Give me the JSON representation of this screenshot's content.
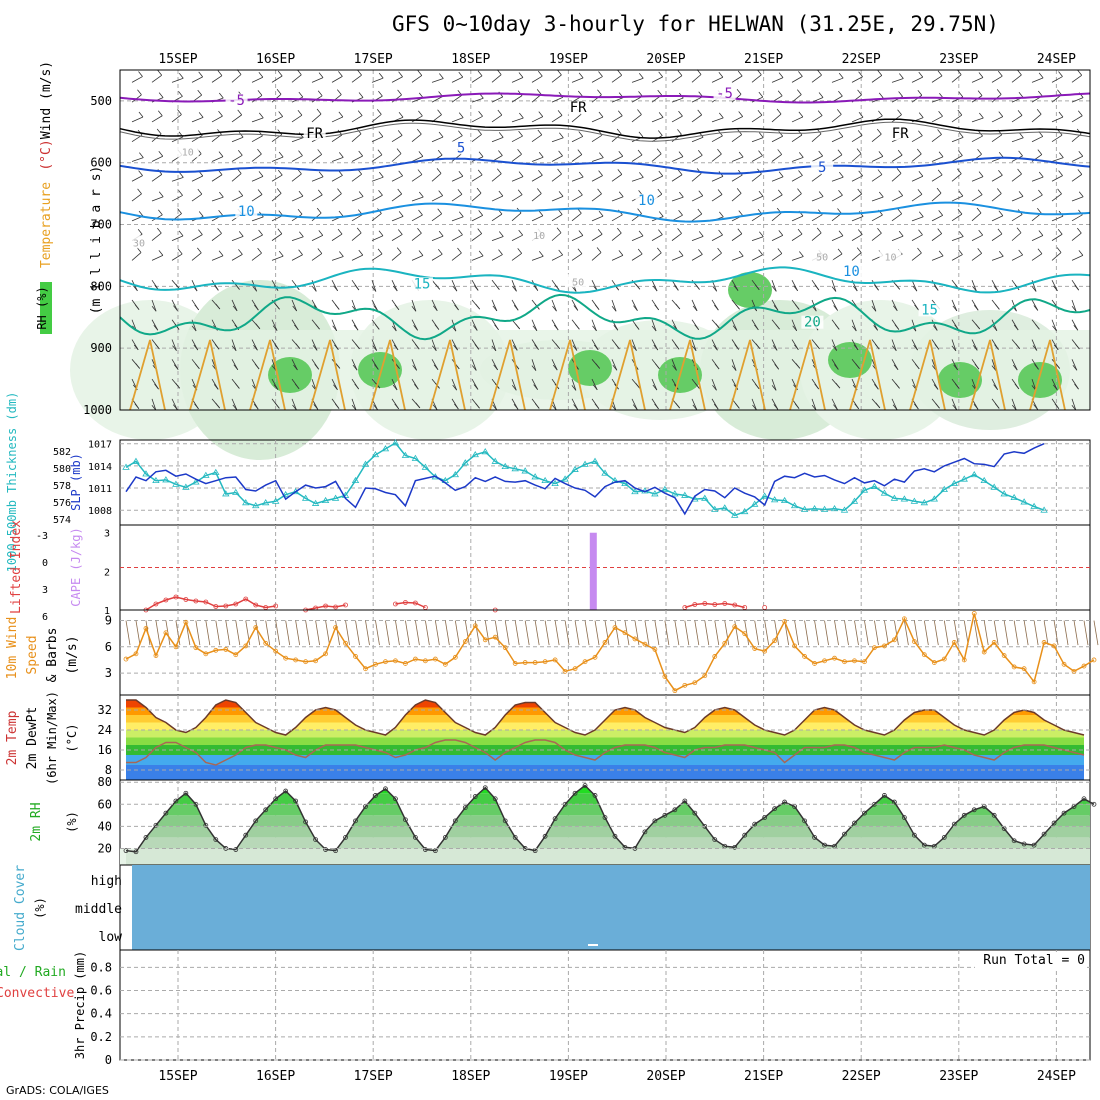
{
  "title": "GFS 0~10day 3-hourly for HELWAN (31.25E, 29.75N)",
  "credit": "GrADS: COLA/IGES",
  "colors": {
    "grid": "#aaaaaa",
    "axis": "#000000",
    "slp": "#1c39c8",
    "thickness": "#24b9c0",
    "lifted_index": "#e04040",
    "cape": "#c68af0",
    "wind10m": "#e8901a",
    "wind_barb": "#8a6a4a",
    "dewpoint_line": "#6b3a2a",
    "rh_fill": "#22cc22",
    "cloud_fill": "#6aaed8",
    "minus5": "#8a1ab8",
    "freezing": "#000000",
    "plus5": "#1a50d0",
    "plus10": "#1a90e0",
    "plus15": "#1ab4c0",
    "plus20": "#10a888"
  },
  "chart_data": [
    {
      "name": "upper-air",
      "type": "heatmap",
      "dates": [
        "15SEP",
        "16SEP",
        "17SEP",
        "18SEP",
        "19SEP",
        "20SEP",
        "21SEP",
        "22SEP",
        "23SEP",
        "24SEP"
      ],
      "yaxis_label_parts": [
        "RH (%)",
        "Temperature",
        "(°C)",
        "Wind (m/s)"
      ],
      "ylabel": "(m i l l i b a r s)",
      "yticks": [
        500,
        600,
        700,
        800,
        900,
        1000
      ],
      "ylim": [
        1000,
        450
      ],
      "contour_labels": [
        {
          "text": "-5",
          "p": 503,
          "day": 0.6,
          "color_key": "minus5"
        },
        {
          "text": "-5",
          "p": 492,
          "day": 5.6,
          "color_key": "minus5"
        },
        {
          "text": "FR",
          "p": 557,
          "day": 1.4,
          "color_key": "freezing"
        },
        {
          "text": "FR",
          "p": 515,
          "day": 4.1,
          "color_key": "freezing"
        },
        {
          "text": "FR",
          "p": 557,
          "day": 7.4,
          "color_key": "freezing"
        },
        {
          "text": "5",
          "p": 580,
          "day": 2.9,
          "color_key": "plus5"
        },
        {
          "text": "5",
          "p": 612,
          "day": 6.6,
          "color_key": "plus5"
        },
        {
          "text": "10",
          "p": 683,
          "day": 0.7,
          "color_key": "plus10"
        },
        {
          "text": "10",
          "p": 665,
          "day": 4.8,
          "color_key": "plus10"
        },
        {
          "text": "10",
          "p": 780,
          "day": 6.9,
          "color_key": "plus10"
        },
        {
          "text": "15",
          "p": 800,
          "day": 2.5,
          "color_key": "plus15"
        },
        {
          "text": "15",
          "p": 842,
          "day": 7.7,
          "color_key": "plus15"
        },
        {
          "text": "20",
          "p": 862,
          "day": 6.5,
          "color_key": "plus20"
        },
        {
          "text": "10",
          "p": 585,
          "day": 0.1,
          "color_key": "grid"
        },
        {
          "text": "10",
          "p": 720,
          "day": 3.7,
          "color_key": "grid"
        },
        {
          "text": "30",
          "p": 732,
          "day": -0.4,
          "color_key": "grid"
        },
        {
          "text": "50",
          "p": 755,
          "day": 6.6,
          "color_key": "grid"
        },
        {
          "text": "50",
          "p": 795,
          "day": 4.1,
          "color_key": "grid"
        },
        {
          "text": "10",
          "p": 755,
          "day": 7.3,
          "color_key": "grid"
        }
      ]
    },
    {
      "name": "slp-thickness",
      "type": "line",
      "ylabel_left": "1000-500mb Thickness (dm)",
      "ylabel_right": "SLP (mb)",
      "yticks_left": [
        574,
        576,
        578,
        580,
        582
      ],
      "yticks_right": [
        1008,
        1011,
        1014,
        1017
      ],
      "ylim_slp": [
        1006,
        1017.5
      ],
      "series": [
        {
          "name": "SLP (mb)",
          "values": [
            1010.5,
            1012.5,
            1012.0,
            1013.2,
            1013.4,
            1012.6,
            1012.9,
            1012.2,
            1011.6,
            1012.0,
            1012.4,
            1012.5,
            1010.8,
            1010.6,
            1011.4,
            1012.0,
            1009.5,
            1010.5,
            1011.4,
            1011.0,
            1011.2,
            1011.9,
            1009.6,
            1008.4,
            1011.0,
            1010.9,
            1010.4,
            1010.1,
            1008.6,
            1012.0,
            1012.3,
            1012.6,
            1011.7,
            1010.7,
            1011.2,
            1012.4,
            1011.9,
            1012.5,
            1011.9,
            1011.8,
            1012.0,
            1011.4,
            1010.9,
            1012.3,
            1011.6,
            1011.0,
            1010.7,
            1009.8,
            1011.2,
            1011.8,
            1012.0,
            1011.0,
            1010.5,
            1011.1,
            1010.3,
            1009.7,
            1007.5,
            1009.9,
            1010.8,
            1010.6,
            1009.7,
            1011.0,
            1010.3,
            1009.8,
            1008.7,
            1011.9,
            1012.6,
            1012.4,
            1013.0,
            1012.5,
            1012.7,
            1012.1,
            1011.6,
            1012.4,
            1011.7,
            1012.0,
            1011.3,
            1012.2,
            1011.8,
            1013.3,
            1013.6,
            1013.2,
            1014.0,
            1014.5,
            1015.0,
            1014.3,
            1014.2,
            1013.9,
            1015.6,
            1015.9,
            1015.7,
            1016.4,
            1017.0
          ]
        },
        {
          "name": "Thickness (dm)",
          "values": [
            1013.8,
            1014.6,
            1012.9,
            1012.0,
            1012.1,
            1011.5,
            1011.1,
            1011.8,
            1012.7,
            1013.1,
            1010.2,
            1010.4,
            1009.0,
            1008.6,
            1009.0,
            1009.2,
            1010.1,
            1010.5,
            1009.6,
            1008.9,
            1009.3,
            1009.6,
            1010.0,
            1012.0,
            1014.2,
            1015.5,
            1016.3,
            1017.1,
            1015.4,
            1015.0,
            1013.8,
            1012.5,
            1012.0,
            1012.8,
            1014.4,
            1015.5,
            1015.9,
            1014.6,
            1013.9,
            1013.6,
            1013.3,
            1012.5,
            1012.0,
            1011.6,
            1012.2,
            1013.5,
            1014.2,
            1014.6,
            1013.0,
            1012.0,
            1011.6,
            1010.5,
            1010.6,
            1010.2,
            1010.8,
            1010.2,
            1010.0,
            1009.5,
            1009.6,
            1008.1,
            1008.3,
            1007.3,
            1007.8,
            1008.8,
            1009.9,
            1009.4,
            1009.3,
            1008.6,
            1008.1,
            1008.2,
            1008.1,
            1008.2,
            1008.0,
            1009.2,
            1010.7,
            1011.2,
            1010.3,
            1009.6,
            1009.5,
            1009.2,
            1009.0,
            1009.5,
            1010.8,
            1011.6,
            1012.2,
            1012.8,
            1012.0,
            1011.1,
            1010.2,
            1009.7,
            1009.1,
            1008.5,
            1008.0
          ]
        }
      ]
    },
    {
      "name": "lifted-cape",
      "type": "line",
      "ylabel_left": "Lifted Index",
      "ylabel_right": "CAPE (J/kg)",
      "yticks_left": [
        "-3",
        "0",
        "3",
        "6"
      ],
      "yticks_right": [
        1,
        2,
        3
      ],
      "ylim_cape": [
        1,
        3.2
      ],
      "cape_bar": {
        "day": 4.25,
        "value": 3.0
      },
      "cape_dashed_level": 2.1,
      "series": [
        {
          "name": "Lifted Index",
          "values": [
            null,
            null,
            6.0,
            4.8,
            4.0,
            3.4,
            3.9,
            4.2,
            4.4,
            5.3,
            5.2,
            4.8,
            3.8,
            5.0,
            5.5,
            5.2,
            null,
            null,
            6.0,
            5.6,
            5.2,
            5.4,
            5.0,
            null,
            null,
            null,
            null,
            4.8,
            4.5,
            4.6,
            5.5,
            null,
            null,
            null,
            null,
            null,
            null,
            6.0,
            null,
            null,
            null,
            null,
            null,
            null,
            null,
            null,
            null,
            null,
            null,
            null,
            null,
            null,
            null,
            null,
            null,
            null,
            5.5,
            4.9,
            4.7,
            4.9,
            4.7,
            5.0,
            5.5,
            null,
            5.5,
            null,
            null,
            null,
            null,
            null,
            null,
            null,
            null,
            null,
            null,
            null,
            null,
            null,
            null,
            null,
            null,
            null,
            null,
            null,
            null,
            null,
            null,
            null,
            null,
            null,
            null,
            null,
            null
          ]
        }
      ]
    },
    {
      "name": "wind10m",
      "type": "line",
      "ylabel": "10m Wind Speed & Barbs (m/s)",
      "yticks": [
        3,
        6,
        9
      ],
      "ylim": [
        0.5,
        10.2
      ],
      "series": [
        {
          "name": "Speed",
          "values": [
            4.6,
            5.2,
            8.1,
            5.0,
            7.6,
            6.0,
            8.8,
            5.9,
            5.2,
            5.6,
            5.7,
            5.1,
            6.1,
            8.2,
            6.4,
            5.5,
            4.7,
            4.5,
            4.3,
            4.4,
            5.2,
            8.2,
            6.4,
            4.9,
            3.5,
            4.0,
            4.3,
            4.4,
            4.1,
            4.6,
            4.4,
            4.6,
            4.0,
            4.8,
            6.6,
            8.4,
            6.8,
            7.1,
            5.9,
            4.1,
            4.2,
            4.2,
            4.3,
            4.5,
            3.2,
            3.5,
            4.3,
            4.8,
            6.5,
            8.2,
            7.6,
            6.9,
            6.3,
            5.7,
            2.6,
            1.0,
            1.6,
            1.9,
            2.7,
            4.9,
            6.4,
            8.3,
            7.5,
            5.8,
            5.5,
            6.7,
            8.9,
            6.1,
            4.9,
            4.1,
            4.4,
            4.7,
            4.3,
            4.4,
            4.3,
            5.9,
            6.1,
            6.8,
            9.2,
            6.6,
            5.1,
            4.2,
            4.6,
            6.5,
            4.5,
            9.8,
            5.4,
            6.5,
            5.0,
            3.7,
            3.5,
            2.0,
            6.5,
            6.1,
            4.0,
            3.2,
            3.8,
            4.5
          ]
        }
      ]
    },
    {
      "name": "temperature",
      "type": "area",
      "ylabel": "2m Temp 2m DewPt (6hr Min/Max) (°C)",
      "yticks": [
        8,
        16,
        24,
        32
      ],
      "ylim": [
        4,
        38
      ],
      "series": [
        {
          "name": "2m Temp",
          "values": [
            36,
            36,
            33,
            29,
            27,
            24,
            23,
            25,
            29,
            34,
            36,
            35,
            31,
            27,
            25,
            23,
            22,
            25,
            29,
            32,
            33,
            32,
            29,
            26,
            24,
            23,
            22,
            25,
            30,
            34,
            36,
            35,
            31,
            27,
            25,
            23,
            22,
            25,
            30,
            34,
            35,
            35,
            31,
            27,
            25,
            23,
            22,
            24,
            28,
            32,
            33,
            32,
            29,
            27,
            25,
            24,
            23,
            25,
            29,
            32,
            33,
            32,
            29,
            26,
            24,
            23,
            22,
            24,
            28,
            32,
            33,
            32,
            29,
            26,
            24,
            23,
            22,
            24,
            28,
            31,
            32,
            32,
            29,
            26,
            24,
            23,
            22,
            24,
            28,
            31,
            32,
            31,
            28,
            26,
            24,
            23,
            22
          ]
        },
        {
          "name": "2m DewPt",
          "values": [
            11,
            11,
            13,
            17,
            19,
            19,
            17,
            15,
            11,
            10,
            12,
            14,
            17,
            18,
            18,
            17,
            16,
            14,
            13,
            16,
            18,
            18,
            18,
            18,
            17,
            16,
            15,
            13,
            14,
            16,
            17,
            19,
            20,
            20,
            19,
            17,
            15,
            12,
            15,
            17,
            19,
            20,
            20,
            19,
            16,
            14,
            13,
            12,
            15,
            17,
            18,
            18,
            18,
            17,
            15,
            14,
            13,
            16,
            17,
            17,
            18,
            18,
            18,
            17,
            16,
            15,
            11,
            14,
            17,
            17,
            17,
            18,
            18,
            17,
            15,
            14,
            13,
            12,
            15,
            17,
            17,
            17,
            18,
            17,
            16,
            14,
            13,
            12,
            15,
            17,
            18,
            18,
            18,
            17,
            16,
            15,
            14
          ]
        }
      ]
    },
    {
      "name": "rh2m",
      "type": "area",
      "ylabel": "2m RH (%)",
      "yticks": [
        20,
        40,
        60,
        80
      ],
      "ylim": [
        5,
        82
      ],
      "series": [
        {
          "name": "2m RH",
          "values": [
            18,
            17,
            30,
            41,
            52,
            63,
            70,
            60,
            41,
            28,
            20,
            19,
            32,
            45,
            55,
            65,
            72,
            63,
            44,
            28,
            19,
            18,
            30,
            45,
            58,
            68,
            74,
            65,
            46,
            30,
            19,
            18,
            30,
            45,
            57,
            67,
            75,
            65,
            45,
            30,
            20,
            18,
            31,
            47,
            60,
            70,
            77,
            68,
            48,
            31,
            21,
            20,
            35,
            45,
            50,
            55,
            63,
            52,
            40,
            28,
            22,
            21,
            32,
            42,
            48,
            56,
            62,
            58,
            45,
            30,
            23,
            22,
            33,
            43,
            52,
            60,
            68,
            62,
            48,
            32,
            23,
            22,
            30,
            42,
            50,
            55,
            58,
            50,
            38,
            27,
            24,
            23,
            33,
            43,
            52,
            58,
            65,
            60
          ]
        }
      ]
    },
    {
      "name": "cloud-cover",
      "type": "area",
      "ylabel": "Cloud Cover (%)",
      "levels": [
        "high",
        "middle",
        "low"
      ]
    },
    {
      "name": "precip",
      "type": "bar",
      "ylabel_left": "Total / Rain",
      "ylabel_left2": "Convective",
      "ylabel": "3hr Precip (mm)",
      "yticks": [
        "0",
        "0.2",
        "0.4",
        "0.6",
        "0.8"
      ],
      "ylim": [
        0,
        0.95
      ],
      "run_total": "Run Total = 0",
      "values": []
    }
  ]
}
